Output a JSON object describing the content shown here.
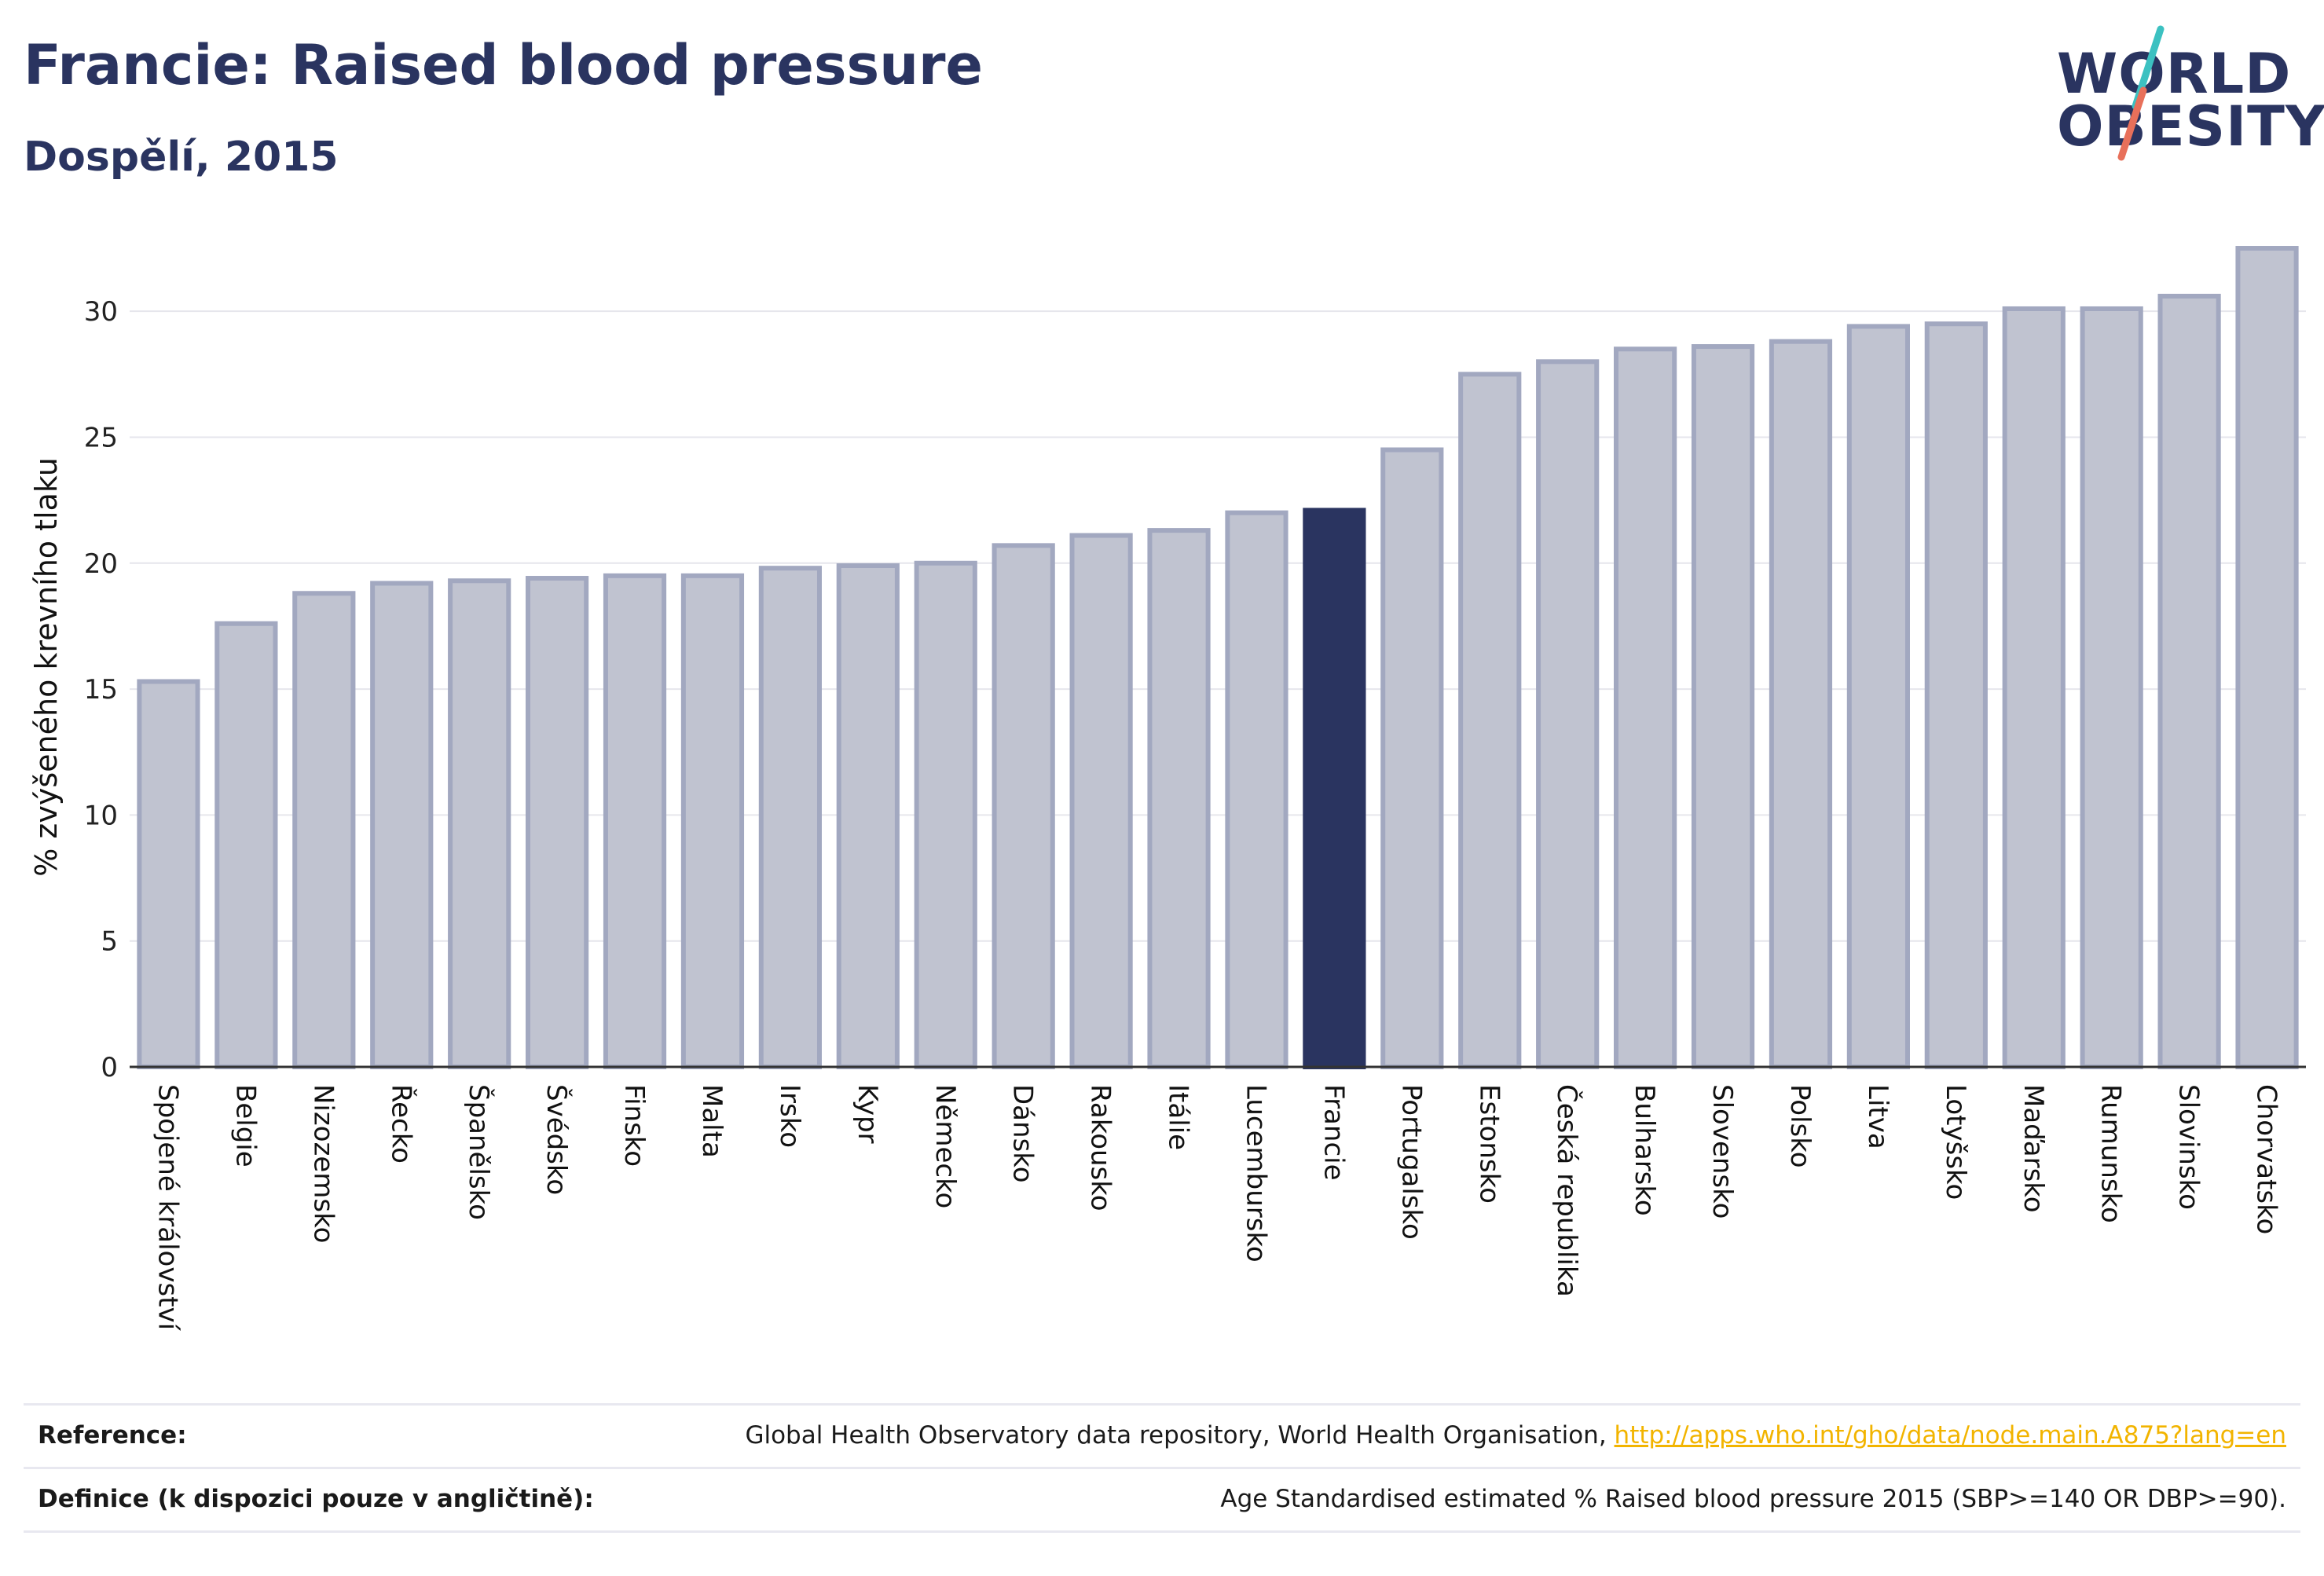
{
  "header": {
    "title": "Francie: Raised blood pressure",
    "subtitle": "Dospělí, 2015"
  },
  "logo": {
    "line1": "WORLD",
    "line2": "OBESITY",
    "accent_colors": [
      "#3cc1c1",
      "#e8705a"
    ]
  },
  "footer": {
    "reference_label": "Reference:",
    "reference_text": "Global Health Observatory data repository, World Health Organisation, ",
    "reference_link": "http://apps.who.int/gho/data/node.main.A875?lang=en",
    "definition_label": "Definice (k dispozici pouze v angličtině):",
    "definition_text": "Age Standardised estimated % Raised blood pressure 2015 (SBP>=140 OR DBP>=90)."
  },
  "chart_data": {
    "type": "bar",
    "ylabel": "% zvýšeného krevního tlaku",
    "ylim": [
      0,
      33
    ],
    "yticks": [
      0,
      5,
      10,
      15,
      20,
      25,
      30
    ],
    "grid": true,
    "highlight": "Francie",
    "colors": {
      "bar": "#c0c3d0",
      "bar_edge": "#a2a8c0",
      "highlight": "#2a3460",
      "grid": "#e6e6ec",
      "axis": "#333333"
    },
    "categories": [
      "Spojené království",
      "Belgie",
      "Nizozemsko",
      "Řecko",
      "Španělsko",
      "Švédsko",
      "Finsko",
      "Malta",
      "Irsko",
      "Kypr",
      "Německo",
      "Dánsko",
      "Rakousko",
      "Itálie",
      "Lucembursko",
      "Francie",
      "Portugalsko",
      "Estonsko",
      "Česká republika",
      "Bulharsko",
      "Slovensko",
      "Polsko",
      "Litva",
      "Lotyšsko",
      "Maďarsko",
      "Rumunsko",
      "Slovinsko",
      "Chorvatsko"
    ],
    "values": [
      15.3,
      17.6,
      18.8,
      19.2,
      19.3,
      19.4,
      19.5,
      19.5,
      19.8,
      19.9,
      20.0,
      20.7,
      21.1,
      21.3,
      22.0,
      22.1,
      24.5,
      27.5,
      28.0,
      28.5,
      28.6,
      28.8,
      29.4,
      29.5,
      30.1,
      30.1,
      30.6,
      32.5
    ]
  }
}
